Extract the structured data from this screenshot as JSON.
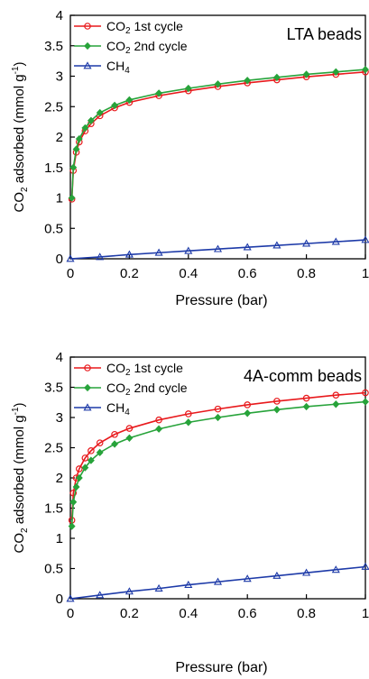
{
  "chart_data": [
    {
      "type": "line",
      "annotation": "LTA beads",
      "xlabel": "Pressure (bar)",
      "ylabel_main": "CO",
      "ylabel_sub": "2",
      "ylabel_rest": " adsorbed (mmol g",
      "ylabel_sup": "-1",
      "ylabel_end": ")",
      "xlim": [
        0,
        1
      ],
      "ylim": [
        0,
        4
      ],
      "xticks": [
        "0",
        "0.2",
        "0.4",
        "0.6",
        "0.8",
        "1"
      ],
      "yticks": [
        "0",
        "0.5",
        "1",
        "1.5",
        "2",
        "2.5",
        "3",
        "3.5",
        "4"
      ],
      "legend_position": "top-left",
      "series": [
        {
          "name_main": "CO",
          "name_sub": "2",
          "name_rest": " 1st cycle",
          "color": "#e8191c",
          "marker": "circle",
          "x": [
            0.005,
            0.01,
            0.02,
            0.03,
            0.05,
            0.07,
            0.1,
            0.15,
            0.2,
            0.3,
            0.4,
            0.5,
            0.6,
            0.7,
            0.8,
            0.9,
            1.0
          ],
          "y": [
            0.98,
            1.45,
            1.75,
            1.92,
            2.1,
            2.22,
            2.35,
            2.48,
            2.57,
            2.68,
            2.76,
            2.83,
            2.89,
            2.94,
            2.99,
            3.03,
            3.07
          ]
        },
        {
          "name_main": "CO",
          "name_sub": "2",
          "name_rest": " 2nd cycle",
          "color": "#27a33a",
          "marker": "diamond",
          "x": [
            0.005,
            0.01,
            0.02,
            0.03,
            0.05,
            0.07,
            0.1,
            0.15,
            0.2,
            0.3,
            0.4,
            0.5,
            0.6,
            0.7,
            0.8,
            0.9,
            1.0
          ],
          "y": [
            1.0,
            1.5,
            1.8,
            1.97,
            2.15,
            2.27,
            2.4,
            2.52,
            2.61,
            2.72,
            2.8,
            2.87,
            2.93,
            2.98,
            3.03,
            3.07,
            3.11
          ]
        },
        {
          "name_main": "CH",
          "name_sub": "4",
          "name_rest": "",
          "color": "#1d3aa8",
          "marker": "triangle",
          "x": [
            0.0,
            0.1,
            0.2,
            0.3,
            0.4,
            0.5,
            0.6,
            0.7,
            0.8,
            0.9,
            1.0
          ],
          "y": [
            0.0,
            0.03,
            0.07,
            0.1,
            0.13,
            0.16,
            0.19,
            0.22,
            0.25,
            0.28,
            0.31
          ]
        }
      ]
    },
    {
      "type": "line",
      "annotation": "4A-comm beads",
      "xlabel": "Pressure (bar)",
      "ylabel_main": "CO",
      "ylabel_sub": "2",
      "ylabel_rest": " adsorbed (mmol g",
      "ylabel_sup": "-1",
      "ylabel_end": ")",
      "xlim": [
        0,
        1
      ],
      "ylim": [
        0,
        4
      ],
      "xticks": [
        "0",
        "0.2",
        "0.4",
        "0.6",
        "0.8",
        "1"
      ],
      "yticks": [
        "0",
        "0.5",
        "1",
        "1.5",
        "2",
        "2.5",
        "3",
        "3.5",
        "4"
      ],
      "legend_position": "top-left",
      "series": [
        {
          "name_main": "CO",
          "name_sub": "2",
          "name_rest": " 1st cycle",
          "color": "#e8191c",
          "marker": "circle",
          "x": [
            0.005,
            0.01,
            0.02,
            0.03,
            0.05,
            0.07,
            0.1,
            0.15,
            0.2,
            0.3,
            0.4,
            0.5,
            0.6,
            0.7,
            0.8,
            0.9,
            1.0
          ],
          "y": [
            1.3,
            1.75,
            2.0,
            2.15,
            2.33,
            2.45,
            2.58,
            2.72,
            2.82,
            2.96,
            3.06,
            3.14,
            3.21,
            3.27,
            3.32,
            3.37,
            3.41
          ]
        },
        {
          "name_main": "CO",
          "name_sub": "2",
          "name_rest": " 2nd cycle",
          "color": "#27a33a",
          "marker": "diamond",
          "x": [
            0.005,
            0.01,
            0.02,
            0.03,
            0.05,
            0.07,
            0.1,
            0.15,
            0.2,
            0.3,
            0.4,
            0.5,
            0.6,
            0.7,
            0.8,
            0.9,
            1.0
          ],
          "y": [
            1.2,
            1.6,
            1.85,
            2.0,
            2.17,
            2.29,
            2.42,
            2.56,
            2.66,
            2.81,
            2.92,
            3.0,
            3.07,
            3.13,
            3.18,
            3.22,
            3.26
          ]
        },
        {
          "name_main": "CH",
          "name_sub": "4",
          "name_rest": "",
          "color": "#1d3aa8",
          "marker": "triangle",
          "x": [
            0.0,
            0.1,
            0.2,
            0.3,
            0.4,
            0.5,
            0.6,
            0.7,
            0.8,
            0.9,
            1.0
          ],
          "y": [
            0.0,
            0.06,
            0.12,
            0.17,
            0.23,
            0.28,
            0.33,
            0.38,
            0.43,
            0.48,
            0.53
          ]
        }
      ]
    }
  ]
}
